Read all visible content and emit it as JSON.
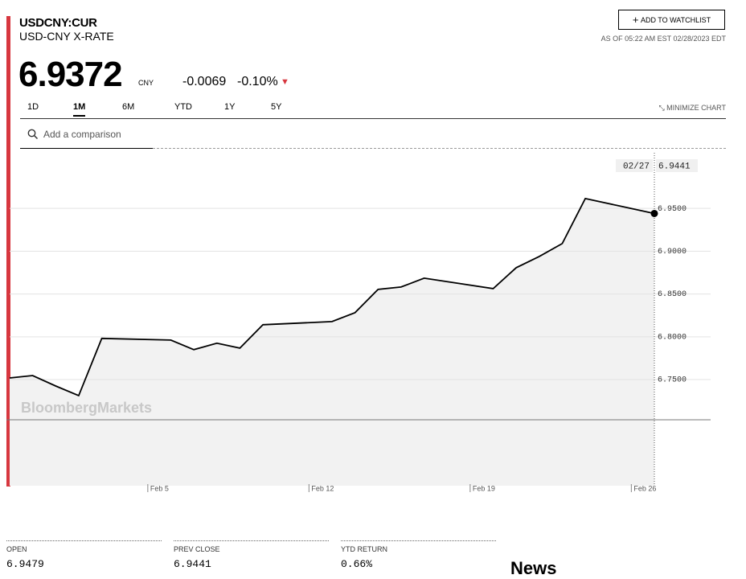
{
  "quote": {
    "ticker": "USDCNY:CUR",
    "name": "USD-CNY X-RATE",
    "price": "6.9372",
    "currency": "CNY",
    "change": "-0.0069",
    "change_percent": "-0.10%",
    "watchlist_button": "ADD TO WATCHLIST",
    "timestamp": "AS OF 05:22 AM EST 02/28/2023 EDT"
  },
  "tabs": [
    "1D",
    "1M",
    "6M",
    "YTD",
    "1Y",
    "5Y"
  ],
  "minimize": "MINIMIZE CHART",
  "search_placeholder": "Add a comparison",
  "chart_data": {
    "type": "line",
    "watermark": "BloombergMarkets",
    "crosshair_label": "02/27",
    "x": [
      "Jan 30",
      "Jan 31",
      "Feb 1",
      "Feb 2",
      "Feb 3",
      "Feb 6",
      "Feb 7",
      "Feb 8",
      "Feb 9",
      "Feb 10",
      "Feb 13",
      "Feb 14",
      "Feb 15",
      "Feb 16",
      "Feb 17",
      "Feb 20",
      "Feb 21",
      "Feb 22",
      "Feb 23",
      "Feb 24",
      "Feb 27"
    ],
    "values": [
      6.7519,
      6.7547,
      6.7425,
      6.7312,
      6.7981,
      6.7962,
      6.785,
      6.7925,
      6.7868,
      6.8141,
      6.8178,
      6.8282,
      6.8554,
      6.8582,
      6.8685,
      6.8563,
      6.8807,
      6.8939,
      6.9089,
      6.9615,
      6.9441
    ],
    "color": "#000000",
    "xlim": [
      "Jan 30",
      "Feb 27"
    ],
    "xticks": [
      "Feb 5",
      "Feb 12",
      "Feb 19",
      "Feb 26"
    ],
    "ylim": [
      6.626,
      7.015
    ],
    "yticks": [
      {
        "value": 6.75,
        "label": "6.7500"
      },
      {
        "value": 6.8,
        "label": "6.8000"
      },
      {
        "value": 6.85,
        "label": "6.8500"
      },
      {
        "value": 6.9,
        "label": "6.9000"
      },
      {
        "value": 6.95,
        "label": "6.9500"
      }
    ],
    "grid": true
  },
  "stats": [
    {
      "label": "OPEN",
      "value": "6.9479"
    },
    {
      "label": "PREV CLOSE",
      "value": "6.9441"
    },
    {
      "label": "YTD RETURN",
      "value": "0.66%"
    }
  ],
  "news": "News"
}
